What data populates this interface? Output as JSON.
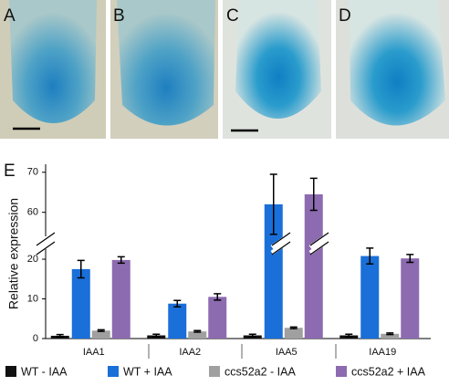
{
  "panels": [
    "A",
    "B",
    "C",
    "D"
  ],
  "chart_data": {
    "type": "bar",
    "label": "E",
    "y_label": "Relative expression",
    "categories": [
      "IAA1",
      "IAA2",
      "IAA5",
      "IAA19"
    ],
    "series": [
      {
        "name": "WT - IAA",
        "color": "#111111",
        "values": [
          0.7,
          0.8,
          0.8,
          0.8
        ],
        "errors": [
          0.3,
          0.3,
          0.3,
          0.3
        ]
      },
      {
        "name": "WT + IAA",
        "color": "#1a6fd8",
        "values": [
          17.5,
          8.8,
          62,
          20.8
        ],
        "errors": [
          2.2,
          0.8,
          7.5,
          2
        ]
      },
      {
        "name": "ccs52a2 - IAA",
        "color": "#a0a0a0",
        "values": [
          2,
          1.8,
          2.7,
          1.2
        ],
        "errors": [
          0.2,
          0.2,
          0.2,
          0.2
        ]
      },
      {
        "name": "ccs52a2 + IAA",
        "color": "#8d6bb0",
        "values": [
          19.8,
          10.5,
          64.5,
          20.2
        ],
        "errors": [
          0.8,
          0.8,
          4,
          1
        ]
      }
    ],
    "ylim": [
      0,
      72
    ],
    "ybreak": [
      23,
      54
    ],
    "yticks": [
      0,
      10,
      20,
      60,
      70
    ]
  }
}
